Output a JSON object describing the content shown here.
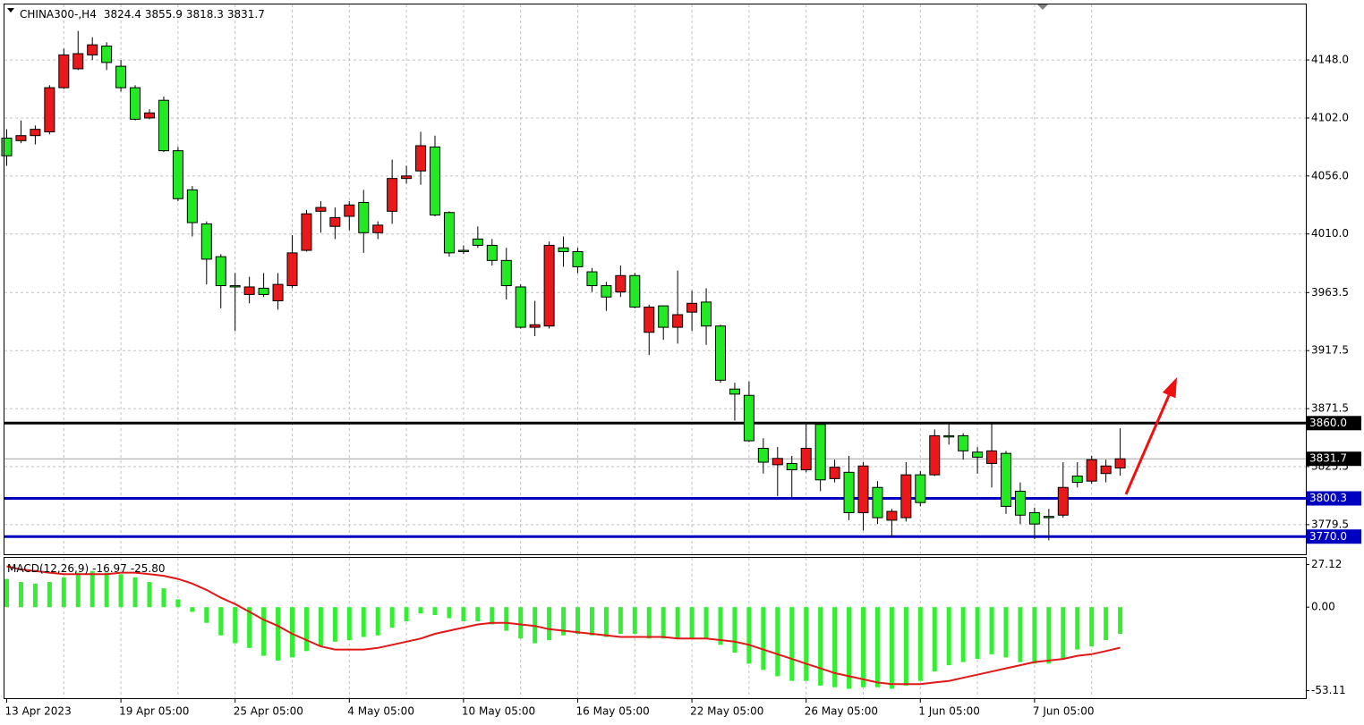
{
  "chart_data": [
    {
      "type": "candlestick",
      "title": "CHINA300-,H4",
      "x": [
        "13 Apr 2023",
        null,
        null,
        null,
        null,
        null,
        null,
        null,
        "19 Apr 05:00",
        null,
        null,
        null,
        null,
        null,
        null,
        null,
        "25 Apr 05:00",
        null,
        null,
        null,
        null,
        null,
        null,
        null,
        "4 May 05:00",
        null,
        null,
        null,
        null,
        null,
        null,
        null,
        "10 May 05:00",
        null,
        null,
        null,
        null,
        null,
        null,
        null,
        "16 May 05:00",
        null,
        null,
        null,
        null,
        null,
        null,
        null,
        "22 May 05:00",
        null,
        null,
        null,
        null,
        null,
        null,
        null,
        "26 May 05:00",
        null,
        null,
        null,
        null,
        null,
        null,
        null,
        "1 Jun 05:00",
        null,
        null,
        null,
        null,
        null,
        null,
        null,
        "7 Jun 05:00",
        null,
        null,
        null,
        null,
        null,
        null
      ],
      "open": [
        4086,
        4084,
        4088,
        4091,
        4126,
        4141,
        4152,
        4159,
        4143,
        4126,
        4102,
        4116,
        4076,
        4045,
        4018,
        3992,
        3969,
        3962,
        3967,
        3957,
        3969,
        3997,
        4028,
        4016,
        4024,
        4035,
        4011,
        4028,
        4054,
        4060,
        4079,
        4027,
        3997,
        4006,
        4001,
        3989,
        3968,
        3936,
        3937,
        3999,
        3996,
        3980,
        3969,
        3964,
        3977,
        3932,
        3953,
        3936,
        3948,
        3956,
        3937,
        3887,
        3882,
        3840,
        3827,
        3828,
        3823,
        3859,
        3816,
        3821,
        3789,
        3809,
        3783,
        3785,
        3819,
        3819,
        3850,
        3850,
        3837,
        3828,
        3836,
        3806,
        3789,
        3786,
        3787,
        3818,
        3814,
        3820,
        3824.4
      ],
      "high": [
        4093,
        4100,
        4096,
        4128,
        4157,
        4171,
        4166,
        4162,
        4148,
        4128,
        4109,
        4119,
        4079,
        4048,
        4020,
        3994,
        3979,
        3976,
        3979,
        3979,
        4009,
        4029,
        4036,
        4031,
        4036,
        4045,
        4020,
        4069,
        4064,
        4091,
        4088,
        4028,
        4001,
        4016,
        4006,
        3999,
        3970,
        3957,
        4004,
        4008,
        3999,
        3983,
        3972,
        3985,
        3979,
        3954,
        3953,
        3981,
        3965,
        3967,
        3938,
        3892,
        3893,
        3848,
        3841,
        3834,
        3859,
        3860,
        3831,
        3834,
        3829,
        3814,
        3792,
        3829,
        3822,
        3855,
        3859,
        3852,
        3841,
        3860,
        3838,
        3813,
        3793,
        3792,
        3829,
        3829,
        3834,
        3831,
        3855.9
      ],
      "low": [
        4064,
        4082,
        4081,
        4089,
        4125,
        4140,
        4148,
        4140,
        4123,
        4100,
        4101,
        4075,
        4036,
        4008,
        3970,
        3951,
        3933,
        3955,
        3960,
        3950,
        3967,
        3996,
        4011,
        4006,
        4013,
        3995,
        4006,
        4018,
        4050,
        4049,
        4024,
        3992,
        3994,
        3999,
        3985,
        3958,
        3935,
        3929,
        3935,
        3984,
        3979,
        3964,
        3949,
        3960,
        3951,
        3914,
        3926,
        3923,
        3933,
        3922,
        3892,
        3862,
        3845,
        3820,
        3802,
        3801,
        3821,
        3806,
        3813,
        3783,
        3775,
        3780,
        3770,
        3782,
        3794,
        3818,
        3843,
        3831,
        3820,
        3809,
        3788,
        3780,
        3768,
        3767,
        3785,
        3809,
        3812,
        3813,
        3818.3
      ],
      "close": [
        4072,
        4088,
        4093,
        4126,
        4152,
        4153,
        4160,
        4146,
        4126,
        4101,
        4106,
        4076,
        4038,
        4019,
        3990,
        3969,
        3968,
        3968,
        3962,
        3970,
        3995,
        4026,
        4031,
        4023,
        4033,
        4011,
        4017,
        4054,
        4056,
        4080,
        4025,
        3995,
        3996,
        4001,
        3989,
        3969,
        3936,
        3938,
        4001,
        3996,
        3984,
        3969,
        3960,
        3977,
        3952,
        3952,
        3936,
        3946,
        3955,
        3937,
        3894,
        3883,
        3846,
        3829,
        3832,
        3823,
        3840,
        3815,
        3825,
        3789,
        3826,
        3785,
        3790,
        3819,
        3797,
        3850,
        3849,
        3838,
        3833,
        3838,
        3794,
        3787,
        3780,
        3785,
        3809,
        3813,
        3831,
        3826,
        3831.7
      ],
      "up_color": "#e8181b",
      "down_color": "#24e824",
      "ylim": [
        3756,
        4192
      ],
      "yticks": [
        {
          "value": 4148,
          "label": "4148.0"
        },
        {
          "value": 4102,
          "label": "4102.0"
        },
        {
          "value": 4056,
          "label": "4056.0"
        },
        {
          "value": 4010,
          "label": "4010.0"
        },
        3963.5,
        3917.5,
        3871.5,
        3825.5,
        3779.5
      ],
      "grid": true,
      "levels": [
        {
          "value": 3860,
          "label": "3860.0",
          "color": "#000000"
        },
        {
          "value": 3800.3,
          "color": "#0000c0"
        },
        {
          "value": 3770,
          "label": "3770.0",
          "color": "#0000c0"
        }
      ]
    },
    {
      "type": "macd",
      "title": "MACD(12,26,9)",
      "histogram": {
        "color": "#33ee33",
        "values": [
          18,
          16,
          15,
          16,
          19,
          22,
          23,
          22,
          21,
          19,
          16,
          12,
          5,
          -3,
          -10,
          -18,
          -23,
          -26,
          -31,
          -34,
          -32,
          -28,
          -25,
          -22,
          -21,
          -19,
          -18,
          -13,
          -9,
          -4,
          -5,
          -7,
          -9,
          -9,
          -11,
          -15,
          -20,
          -23,
          -21,
          -18,
          -17,
          -18,
          -19,
          -17,
          -17,
          -20,
          -20,
          -20,
          -20,
          -20,
          -24,
          -29,
          -36,
          -40,
          -44,
          -47,
          -47,
          -50,
          -51,
          -52,
          -51,
          -51,
          -52,
          -50,
          -47,
          -41,
          -37,
          -35,
          -33,
          -30,
          -32,
          -35,
          -36,
          -36,
          -33,
          -27,
          -25,
          -21,
          -16.97
        ]
      },
      "signal": {
        "color": "#e01818",
        "values": [
          26,
          24,
          23,
          22,
          21,
          21,
          21,
          21,
          22,
          22,
          21,
          20,
          18,
          15,
          11,
          6,
          2,
          -3,
          -8,
          -12,
          -17,
          -21,
          -25,
          -27,
          -27,
          -27,
          -26,
          -24,
          -22,
          -20,
          -17,
          -15,
          -13,
          -11,
          -10,
          -10,
          -11,
          -12,
          -14,
          -15,
          -16,
          -17,
          -18,
          -19,
          -19,
          -19,
          -19,
          -20,
          -20,
          -20,
          -21,
          -22,
          -24,
          -27,
          -30,
          -33,
          -36,
          -39,
          -42,
          -44,
          -46,
          -48,
          -49,
          -49,
          -49,
          -48,
          -47,
          -45,
          -43,
          -41,
          -39,
          -37,
          -35,
          -34,
          -33,
          -31,
          -30,
          -28,
          -25.8
        ],
        "value_labels": [
          null,
          null,
          null,
          null,
          null,
          null,
          null,
          null,
          null,
          null,
          null,
          null,
          null,
          null,
          null,
          null,
          null,
          null,
          null,
          null,
          null,
          null,
          null,
          null,
          null,
          null,
          null,
          null,
          null,
          null,
          null,
          null,
          null,
          null,
          null,
          null,
          null,
          null,
          null,
          null,
          null,
          null,
          null,
          null,
          null,
          null,
          null,
          null,
          null,
          null,
          null,
          null,
          null,
          null,
          null,
          null,
          null,
          null,
          null,
          null,
          null,
          null,
          null,
          null,
          null,
          null,
          null,
          null,
          null,
          null,
          null,
          null,
          null,
          null,
          null,
          null,
          null,
          null,
          "-25.80"
        ]
      },
      "ylim": [
        -58,
        32
      ],
      "yticks": [
        27.12,
        {
          "value": 0,
          "label": "0.00"
        },
        -53.11
      ]
    }
  ]
}
